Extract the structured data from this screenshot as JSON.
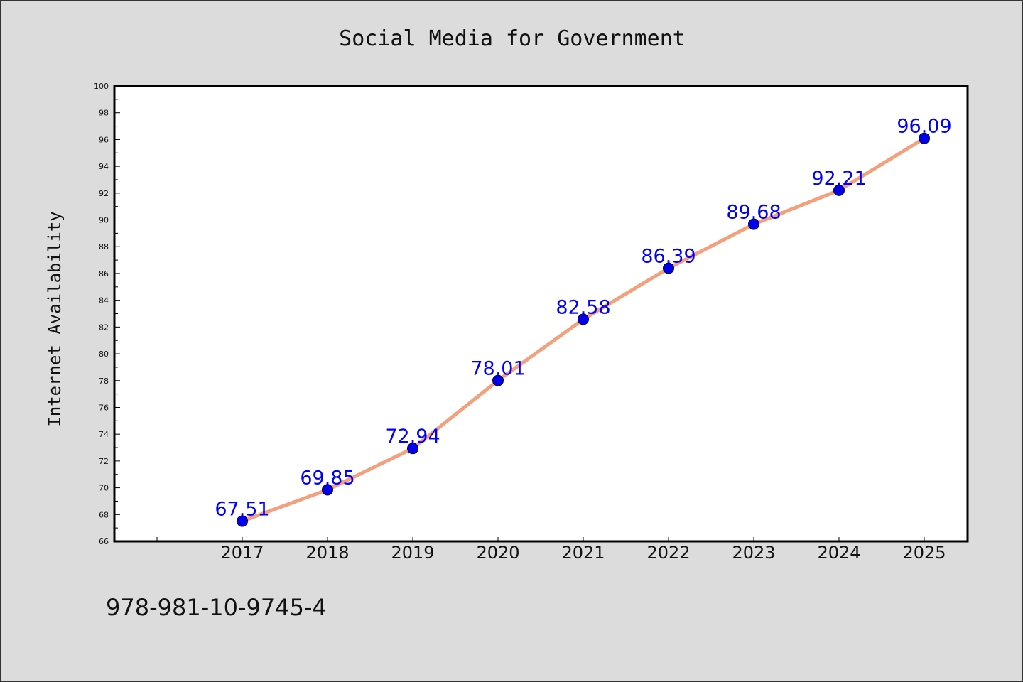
{
  "chart_data": {
    "type": "line",
    "title": "Social Media for Government",
    "xlabel": "",
    "ylabel": "Internet Availability",
    "categories": [
      "2017",
      "2018",
      "2019",
      "2020",
      "2021",
      "2022",
      "2023",
      "2024",
      "2025"
    ],
    "series": [
      {
        "values": [
          67.51,
          69.85,
          72.94,
          78.01,
          82.58,
          86.39,
          89.68,
          92.21,
          96.09
        ],
        "value_labels": [
          "67.51",
          "69.85",
          "72.94",
          "78.01",
          "82.58",
          "86.39",
          "89.68",
          "92.21",
          "96.09"
        ],
        "line_color": "#f4a07c",
        "marker_color": "#0000ee",
        "label_color": "#0000ff"
      }
    ],
    "ylim": [
      66,
      100
    ],
    "yticks": [
      "66",
      "68",
      "70",
      "72",
      "74",
      "76",
      "78",
      "80",
      "82",
      "84",
      "86",
      "88",
      "90",
      "92",
      "94",
      "96",
      "98",
      "100"
    ],
    "grid": false,
    "legend": "none",
    "plot_background": "#ffffff",
    "figure_background": "#dcdcdc"
  },
  "footer": {
    "text": "978-981-10-9745-4"
  }
}
